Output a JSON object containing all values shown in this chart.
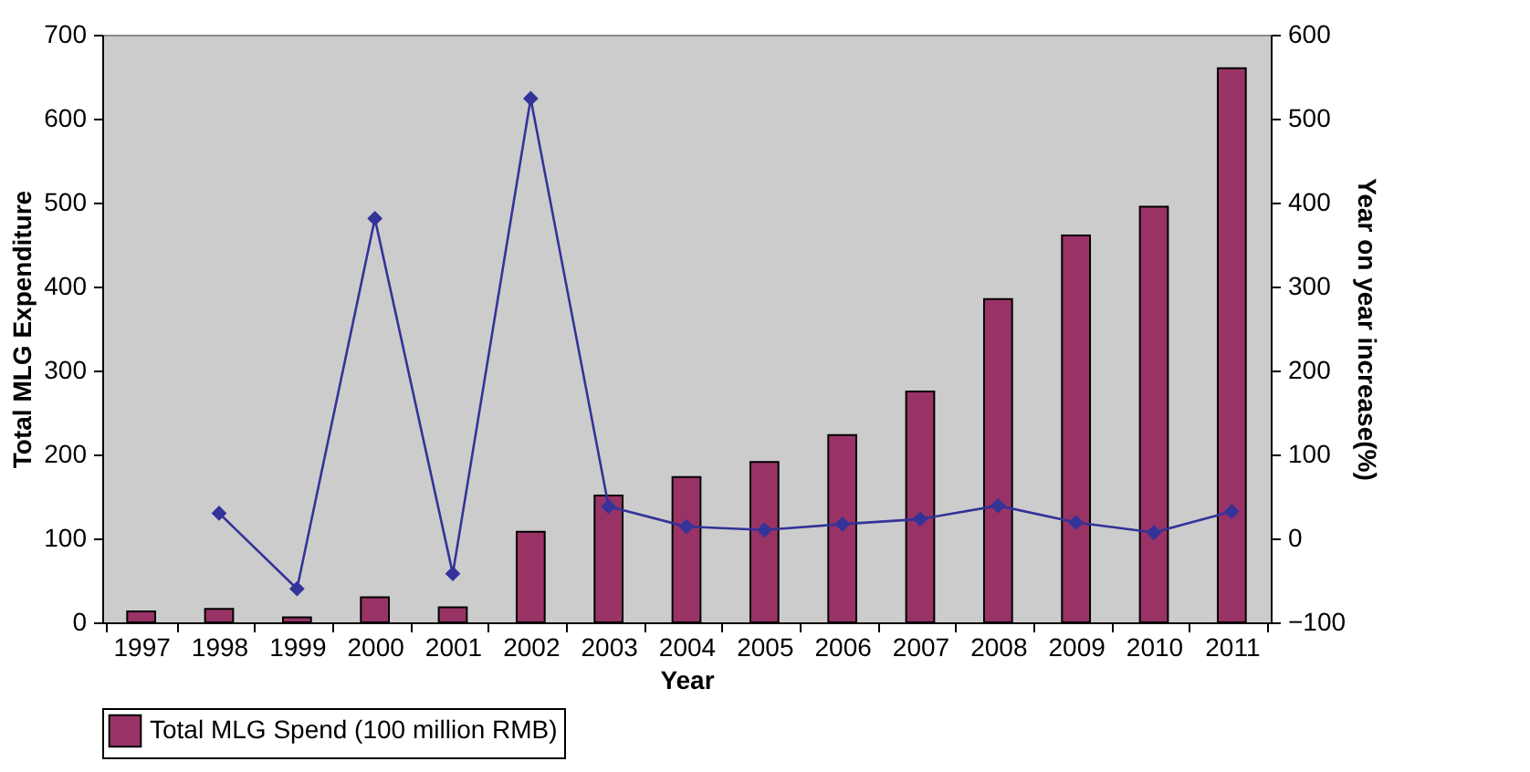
{
  "chart_data": {
    "type": "bar",
    "xlabel": "Year",
    "ylabel": "Total MLG Expenditure",
    "y2label": "Year on year increase(%)",
    "categories": [
      "1997",
      "1998",
      "1999",
      "2000",
      "2001",
      "2002",
      "2003",
      "2004",
      "2005",
      "2006",
      "2007",
      "2008",
      "2009",
      "2010",
      "2011"
    ],
    "series": [
      {
        "name": "Total MLG Spend (100 million RMB)",
        "color": "#993366",
        "values": [
          13,
          16,
          6,
          30,
          18,
          108,
          151,
          173,
          191,
          223,
          275,
          385,
          461,
          495,
          660
        ]
      },
      {
        "type": "line",
        "axis": "y2",
        "color": "#333399",
        "marker": "diamond",
        "values": [
          null,
          30,
          -60,
          381,
          -42,
          524,
          38,
          14,
          10,
          17,
          23,
          39,
          19,
          7,
          32
        ]
      }
    ],
    "ylim": [
      0,
      700
    ],
    "yticks": [
      0,
      100,
      200,
      300,
      400,
      500,
      600,
      700
    ],
    "y2lim": [
      -100,
      600
    ],
    "y2ticks": [
      -100,
      0,
      100,
      200,
      300,
      400,
      500,
      600
    ],
    "grid": false,
    "legend": "bottom"
  }
}
